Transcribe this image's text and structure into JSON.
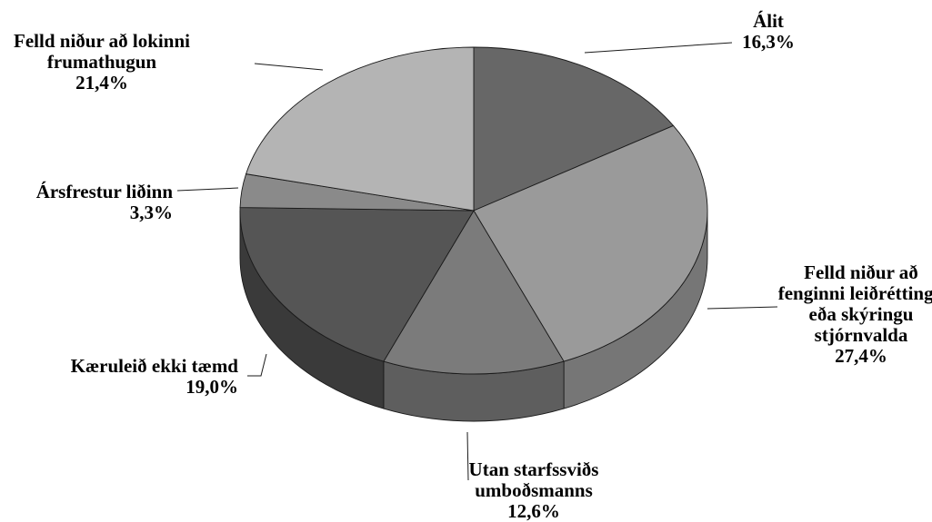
{
  "chart_data": {
    "type": "pie",
    "title": "",
    "three_d": true,
    "slices": [
      {
        "label_lines": [
          "Álit"
        ],
        "value": 16.3,
        "value_label": "16,3%",
        "color": "#676767",
        "side_color": "#4f4f4f"
      },
      {
        "label_lines": [
          "Felld niður að",
          "fenginni leiðréttingu",
          "eða skýringu",
          "stjórnvalda"
        ],
        "value": 27.4,
        "value_label": "27,4%",
        "color": "#9a9a9a",
        "side_color": "#767676"
      },
      {
        "label_lines": [
          "Utan starfssviðs",
          "umboðsmanns"
        ],
        "value": 12.6,
        "value_label": "12,6%",
        "color": "#7b7b7b",
        "side_color": "#5e5e5e"
      },
      {
        "label_lines": [
          "Kæruleið ekki tæmd"
        ],
        "value": 19.0,
        "value_label": "19,0%",
        "color": "#555555",
        "side_color": "#3a3a3a"
      },
      {
        "label_lines": [
          "Ársfrestur liðinn"
        ],
        "value": 3.3,
        "value_label": "3,3%",
        "color": "#8a8a8a",
        "side_color": "#6a6a6a"
      },
      {
        "label_lines": [
          "Felld niður að lokinni",
          "frumathugun"
        ],
        "value": 21.4,
        "value_label": "21,4%",
        "color": "#b4b4b4",
        "side_color": "#929292"
      }
    ]
  }
}
